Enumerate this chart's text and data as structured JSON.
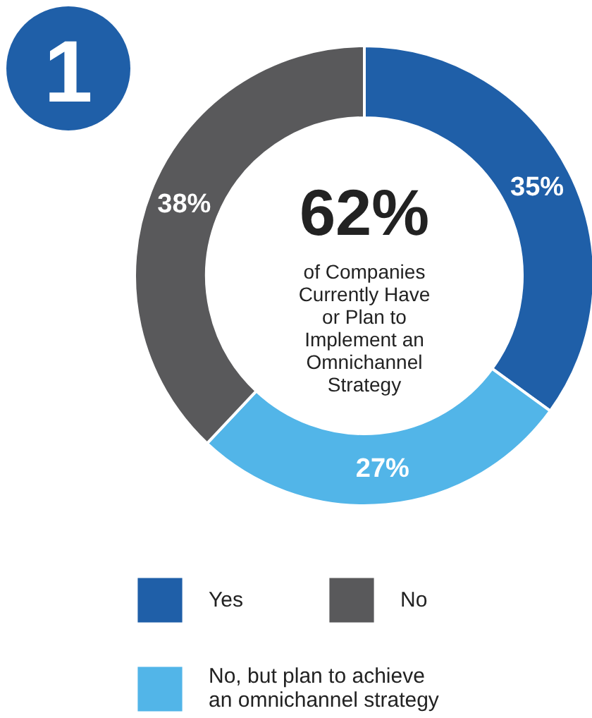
{
  "chart_data": {
    "type": "donut",
    "title": "62%",
    "subtitle": "of Companies Currently Have or Plan to Implement an Omnichannel Strategy",
    "annotations": [
      "1"
    ],
    "categories": [
      "Yes",
      "No, but plan to achieve an omnichannel strategy",
      "No"
    ],
    "values": [
      35,
      27,
      38
    ],
    "colors": [
      "#1f5fa8",
      "#52b5e8",
      "#59595b"
    ],
    "value_labels": [
      "35%",
      "27%",
      "38%"
    ],
    "legend": "bottom"
  }
}
